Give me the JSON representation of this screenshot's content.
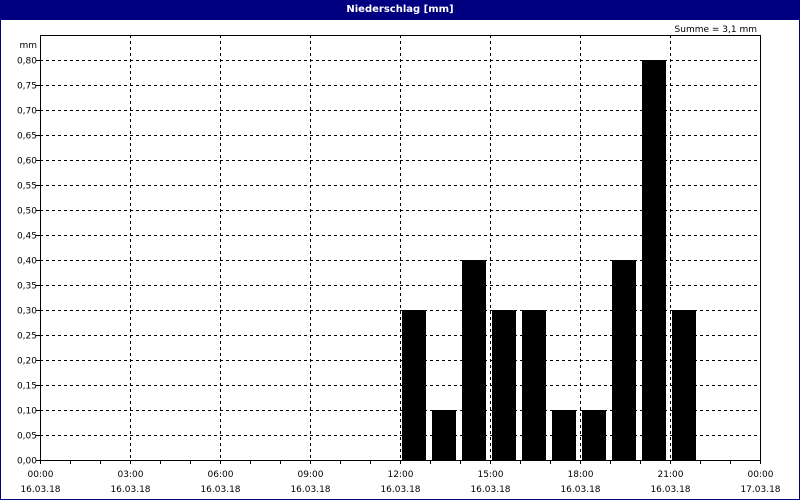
{
  "window": {
    "title": "Niederschlag [mm]"
  },
  "summary": "Summe = 3,1 mm",
  "chart_data": {
    "type": "bar",
    "title": "Niederschlag [mm]",
    "ylabel": "mm",
    "ylim": [
      0,
      0.85
    ],
    "yticks": [
      "0,00",
      "0,05",
      "0,10",
      "0,15",
      "0,20",
      "0,25",
      "0,30",
      "0,35",
      "0,40",
      "0,45",
      "0,50",
      "0,55",
      "0,60",
      "0,65",
      "0,70",
      "0,75",
      "0,80"
    ],
    "xlim": [
      "16.03.18 00:00",
      "17.03.18 00:00"
    ],
    "xticks": [
      {
        "time": "00:00",
        "date": "16.03.18"
      },
      {
        "time": "03:00",
        "date": "16.03.18"
      },
      {
        "time": "06:00",
        "date": "16.03.18"
      },
      {
        "time": "09:00",
        "date": "16.03.18"
      },
      {
        "time": "12:00",
        "date": "16.03.18"
      },
      {
        "time": "15:00",
        "date": "16.03.18"
      },
      {
        "time": "18:00",
        "date": "16.03.18"
      },
      {
        "time": "21:00",
        "date": "16.03.18"
      },
      {
        "time": "00:00",
        "date": "17.03.18"
      }
    ],
    "bars": [
      {
        "hour": "12:00",
        "value": 0.3
      },
      {
        "hour": "13:00",
        "value": 0.1
      },
      {
        "hour": "14:00",
        "value": 0.4
      },
      {
        "hour": "15:00",
        "value": 0.3
      },
      {
        "hour": "16:00",
        "value": 0.3
      },
      {
        "hour": "17:00",
        "value": 0.1
      },
      {
        "hour": "18:00",
        "value": 0.1
      },
      {
        "hour": "19:00",
        "value": 0.4
      },
      {
        "hour": "20:00",
        "value": 0.8
      },
      {
        "hour": "21:00",
        "value": 0.3
      }
    ],
    "grid": true,
    "colors": {
      "bar": "#000000",
      "titlebar": "#000080"
    }
  }
}
